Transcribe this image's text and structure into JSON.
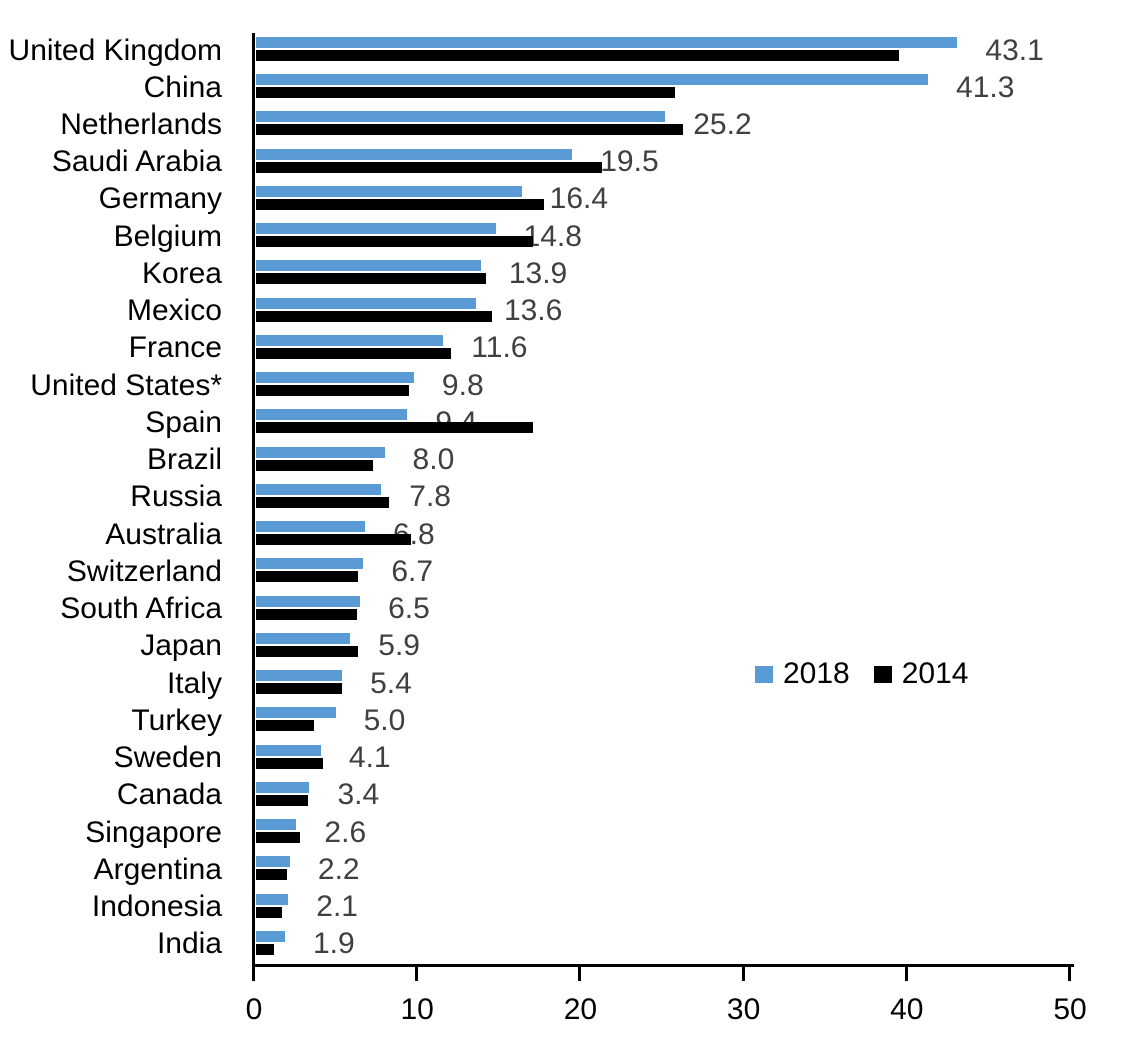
{
  "chart_data": {
    "type": "bar",
    "orientation": "horizontal",
    "title": "",
    "xlabel": "",
    "ylabel": "",
    "xlim": [
      0,
      50
    ],
    "x_ticks": [
      0,
      10,
      20,
      30,
      40,
      50
    ],
    "grid": false,
    "legend_position": "middle-right",
    "categories": [
      "United Kingdom",
      "China",
      "Netherlands",
      "Saudi Arabia",
      "Germany",
      "Belgium",
      "Korea",
      "Mexico",
      "France",
      "United States*",
      "Spain",
      "Brazil",
      "Russia",
      "Australia",
      "Switzerland",
      "South Africa",
      "Japan",
      "Italy",
      "Turkey",
      "Sweden",
      "Canada",
      "Singapore",
      "Argentina",
      "Indonesia",
      "India"
    ],
    "series": [
      {
        "name": "2018",
        "color": "#5B9BD5",
        "data_labels_shown": true,
        "values": [
          43.1,
          41.3,
          25.2,
          19.5,
          16.4,
          14.8,
          13.9,
          13.6,
          11.6,
          9.8,
          9.4,
          8.0,
          7.8,
          6.8,
          6.7,
          6.5,
          5.9,
          5.4,
          5.0,
          4.1,
          3.4,
          2.6,
          2.2,
          2.1,
          1.9
        ]
      },
      {
        "name": "2014",
        "color": "#000000",
        "data_labels_shown": false,
        "values": [
          39.5,
          25.8,
          26.3,
          21.3,
          17.8,
          17.1,
          14.2,
          14.6,
          12.1,
          9.5,
          17.1,
          7.3,
          8.3,
          9.6,
          6.4,
          6.3,
          6.4,
          5.4,
          3.7,
          4.2,
          3.3,
          2.8,
          2.0,
          1.7,
          1.2
        ]
      }
    ],
    "value_label_color": "#404040",
    "axis_color": "#000000"
  }
}
